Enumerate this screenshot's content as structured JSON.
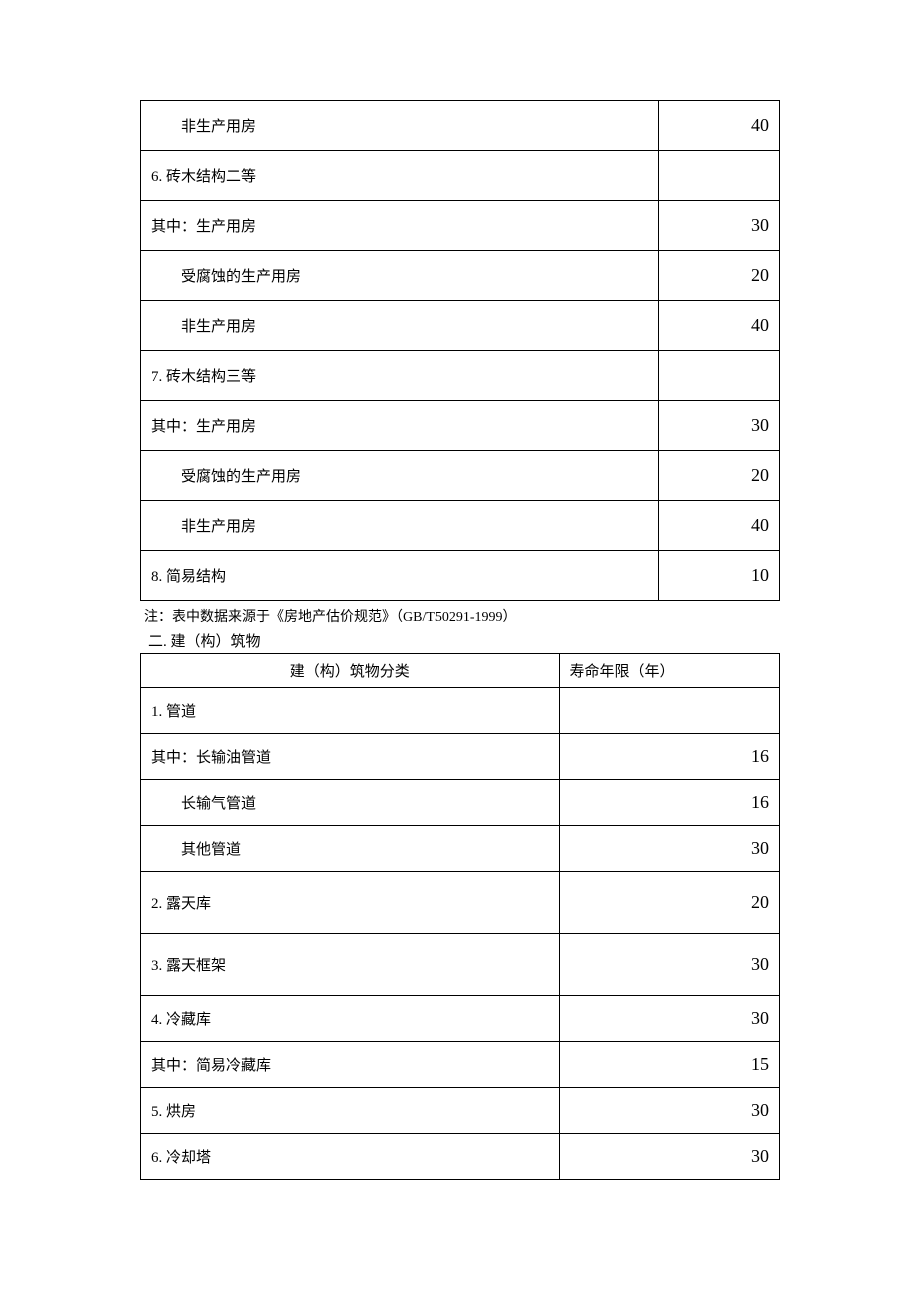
{
  "table1": {
    "rows": [
      {
        "label": "非生产用房",
        "value": "40",
        "indent": true
      },
      {
        "label": "6. 砖木结构二等",
        "value": "",
        "indent": false
      },
      {
        "label": "其中：生产用房",
        "value": "30",
        "indent": false
      },
      {
        "label": "受腐蚀的生产用房",
        "value": "20",
        "indent": true
      },
      {
        "label": "非生产用房",
        "value": "40",
        "indent": true
      },
      {
        "label": "7. 砖木结构三等",
        "value": "",
        "indent": false
      },
      {
        "label": "其中：生产用房",
        "value": "30",
        "indent": false
      },
      {
        "label": "受腐蚀的生产用房",
        "value": "20",
        "indent": true
      },
      {
        "label": "非生产用房",
        "value": "40",
        "indent": true
      },
      {
        "label": "8. 简易结构",
        "value": "10",
        "indent": false
      }
    ]
  },
  "note": "注：表中数据来源于《房地产估价规范》（GB/T50291-1999）",
  "section_title": "二. 建（构）筑物",
  "table2": {
    "header": {
      "col1": "建（构）筑物分类",
      "col2": "寿命年限（年）"
    },
    "rows": [
      {
        "label": "1. 管道",
        "value": "",
        "indent": false,
        "tall": false
      },
      {
        "label": "其中：长输油管道",
        "value": "16",
        "indent": false,
        "tall": false
      },
      {
        "label": "长输气管道",
        "value": "16",
        "indent": true,
        "tall": false
      },
      {
        "label": "其他管道",
        "value": "30",
        "indent": true,
        "tall": false
      },
      {
        "label": "2. 露天库",
        "value": "20",
        "indent": false,
        "tall": true
      },
      {
        "label": "3. 露天框架",
        "value": "30",
        "indent": false,
        "tall": true
      },
      {
        "label": "4. 冷藏库",
        "value": "30",
        "indent": false,
        "tall": false
      },
      {
        "label": "其中：简易冷藏库",
        "value": "15",
        "indent": false,
        "tall": false
      },
      {
        "label": "5. 烘房",
        "value": "30",
        "indent": false,
        "tall": false
      },
      {
        "label": "6. 冷却塔",
        "value": "30",
        "indent": false,
        "tall": false
      }
    ]
  }
}
